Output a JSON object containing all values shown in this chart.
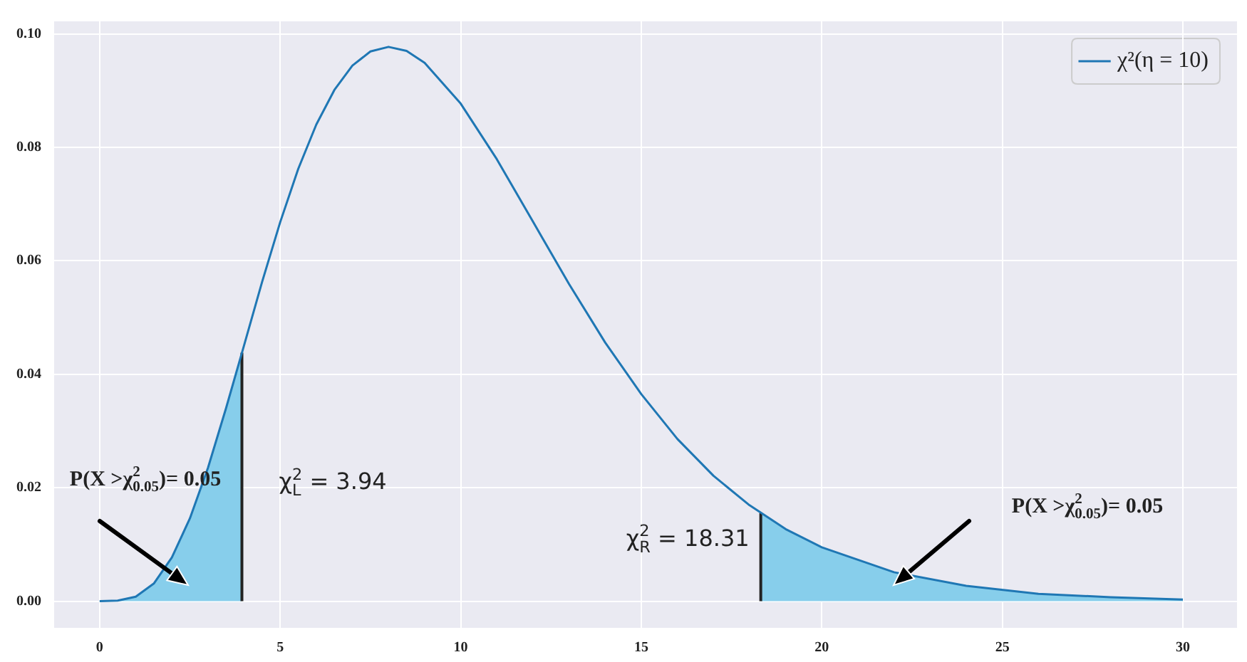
{
  "chart_data": {
    "type": "line",
    "xlim": [
      -1.26,
      31.5
    ],
    "ylim": [
      -0.0047,
      0.1022
    ],
    "xticks": [
      0,
      5,
      10,
      15,
      20,
      25,
      30
    ],
    "yticks": [
      {
        "value": 0,
        "label": "0.00"
      },
      {
        "value": 0.02,
        "label": "0.02"
      },
      {
        "value": 0.04,
        "label": "0.04"
      },
      {
        "value": 0.06,
        "label": "0.06"
      },
      {
        "value": 0.08,
        "label": "0.08"
      },
      {
        "value": 0.1,
        "label": "0.10"
      }
    ],
    "grid": true,
    "legend": "top right",
    "marker": "none",
    "series": [
      {
        "type": "area",
        "color": "#87ceeb",
        "x": [
          0,
          0.5,
          1,
          1.5,
          2,
          2.5,
          3,
          3.5,
          3.94
        ],
        "values": [
          0,
          0.0001,
          0.0008,
          0.0031,
          0.0077,
          0.0146,
          0.0235,
          0.034,
          0.0438
        ]
      },
      {
        "type": "area",
        "color": "#87ceeb",
        "x": [
          18.31,
          19,
          20,
          22,
          24,
          26,
          28,
          30
        ],
        "values": [
          0.0155,
          0.0127,
          0.0095,
          0.0051,
          0.0027,
          0.0013,
          0.0007,
          0.0003
        ]
      },
      {
        "type": "line",
        "color": "#222222",
        "x": [
          3.94,
          3.94
        ],
        "values": [
          0,
          0.0438
        ]
      },
      {
        "type": "line",
        "color": "#222222",
        "x": [
          18.31,
          18.31
        ],
        "values": [
          0,
          0.0155
        ]
      },
      {
        "type": "line",
        "name": "χ²(η = 10)",
        "color": "#1f77b4",
        "x": [
          0,
          0.5,
          1,
          1.5,
          2,
          2.5,
          3,
          3.5,
          4,
          4.5,
          5,
          5.5,
          6,
          6.5,
          7,
          7.5,
          8,
          8.5,
          9,
          10,
          11,
          12,
          13,
          14,
          15,
          16,
          17,
          18,
          19,
          20,
          22,
          24,
          26,
          28,
          30
        ],
        "values": [
          0,
          0.0001,
          0.0008,
          0.0031,
          0.0077,
          0.0146,
          0.0235,
          0.034,
          0.0451,
          0.0563,
          0.0668,
          0.0762,
          0.084,
          0.0901,
          0.0944,
          0.0969,
          0.0977,
          0.097,
          0.0949,
          0.0877,
          0.0779,
          0.0669,
          0.0559,
          0.0456,
          0.0365,
          0.0286,
          0.0221,
          0.0169,
          0.0127,
          0.0095,
          0.0051,
          0.0027,
          0.0013,
          0.0007,
          0.0003
        ]
      }
    ],
    "annotations": [
      "P(X >χ$^{2}$$_{0.05}$)= 0.05",
      {
        "text": "χ$^{2}$$_{L}$ = 3.94",
        "x": 3.94,
        "y": 0.021
      },
      {
        "text": "χ$^{2}$$_{R}$ = 18.31",
        "x": 18.31,
        "y": 0.0115
      },
      "P(X >χ$^{2}$$_{0.05}$)= 0.05"
    ]
  }
}
